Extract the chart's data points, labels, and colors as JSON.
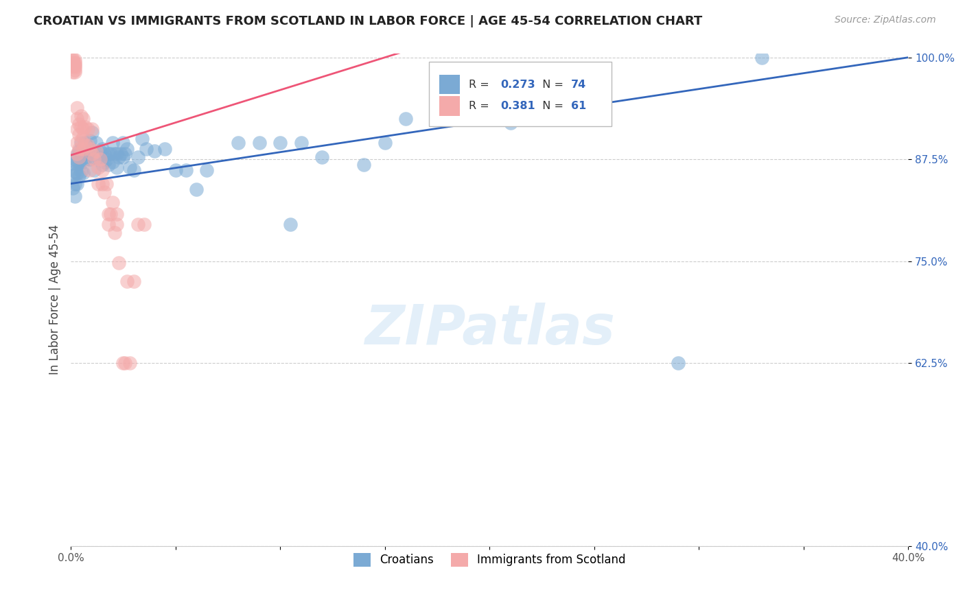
{
  "title": "CROATIAN VS IMMIGRANTS FROM SCOTLAND IN LABOR FORCE | AGE 45-54 CORRELATION CHART",
  "source": "Source: ZipAtlas.com",
  "ylabel": "In Labor Force | Age 45-54",
  "xlim": [
    0.0,
    0.4
  ],
  "ylim": [
    0.4,
    1.005
  ],
  "ytick_positions": [
    0.4,
    0.625,
    0.75,
    0.875,
    1.0
  ],
  "ytick_labels": [
    "40.0%",
    "62.5%",
    "75.0%",
    "87.5%",
    "100.0%"
  ],
  "xtick_positions": [
    0.0,
    0.05,
    0.1,
    0.15,
    0.2,
    0.25,
    0.3,
    0.35,
    0.4
  ],
  "xtick_labels": [
    "0.0%",
    "",
    "",
    "",
    "",
    "",
    "",
    "",
    "40.0%"
  ],
  "grid_color": "#cccccc",
  "watermark": "ZIPatlas",
  "R1": "0.273",
  "N1": "74",
  "R2": "0.381",
  "N2": "61",
  "blue_color": "#7BAAD4",
  "pink_color": "#F4AAAA",
  "blue_line": "#3366BB",
  "pink_line": "#EE5577",
  "label1": "Croatians",
  "label2": "Immigrants from Scotland",
  "blue_x": [
    0.001,
    0.001,
    0.001,
    0.002,
    0.002,
    0.002,
    0.002,
    0.003,
    0.003,
    0.003,
    0.003,
    0.004,
    0.004,
    0.004,
    0.005,
    0.005,
    0.005,
    0.006,
    0.006,
    0.006,
    0.007,
    0.007,
    0.008,
    0.009,
    0.009,
    0.01,
    0.01,
    0.011,
    0.011,
    0.012,
    0.013,
    0.014,
    0.015,
    0.015,
    0.016,
    0.016,
    0.017,
    0.018,
    0.018,
    0.019,
    0.02,
    0.02,
    0.021,
    0.022,
    0.022,
    0.023,
    0.024,
    0.025,
    0.025,
    0.026,
    0.027,
    0.028,
    0.03,
    0.032,
    0.034,
    0.036,
    0.04,
    0.045,
    0.05,
    0.055,
    0.06,
    0.065,
    0.08,
    0.09,
    0.1,
    0.11,
    0.15,
    0.21,
    0.29,
    0.105,
    0.12,
    0.14,
    0.33,
    0.16
  ],
  "blue_y": [
    0.87,
    0.855,
    0.84,
    0.875,
    0.86,
    0.845,
    0.83,
    0.88,
    0.87,
    0.858,
    0.845,
    0.885,
    0.87,
    0.855,
    0.895,
    0.875,
    0.86,
    0.885,
    0.872,
    0.858,
    0.895,
    0.875,
    0.882,
    0.898,
    0.875,
    0.908,
    0.885,
    0.878,
    0.862,
    0.895,
    0.878,
    0.885,
    0.888,
    0.868,
    0.882,
    0.872,
    0.875,
    0.882,
    0.868,
    0.882,
    0.895,
    0.872,
    0.882,
    0.882,
    0.865,
    0.878,
    0.882,
    0.895,
    0.878,
    0.882,
    0.888,
    0.865,
    0.862,
    0.878,
    0.9,
    0.888,
    0.885,
    0.888,
    0.862,
    0.862,
    0.838,
    0.862,
    0.895,
    0.895,
    0.895,
    0.895,
    0.895,
    0.92,
    0.625,
    0.795,
    0.878,
    0.868,
    1.0,
    0.925
  ],
  "pink_x": [
    0.001,
    0.001,
    0.001,
    0.001,
    0.001,
    0.002,
    0.002,
    0.002,
    0.002,
    0.002,
    0.002,
    0.003,
    0.003,
    0.003,
    0.003,
    0.004,
    0.004,
    0.004,
    0.005,
    0.005,
    0.005,
    0.006,
    0.006,
    0.006,
    0.006,
    0.007,
    0.007,
    0.008,
    0.008,
    0.009,
    0.009,
    0.01,
    0.01,
    0.011,
    0.012,
    0.013,
    0.013,
    0.014,
    0.015,
    0.015,
    0.016,
    0.017,
    0.018,
    0.018,
    0.019,
    0.02,
    0.021,
    0.022,
    0.022,
    0.023,
    0.025,
    0.026,
    0.027,
    0.028,
    0.03,
    0.032,
    0.035,
    0.001,
    0.002,
    0.003,
    0.004
  ],
  "pink_y": [
    0.998,
    0.996,
    0.994,
    0.992,
    0.99,
    0.997,
    0.994,
    0.992,
    0.99,
    0.988,
    0.985,
    0.938,
    0.925,
    0.912,
    0.895,
    0.918,
    0.905,
    0.888,
    0.928,
    0.915,
    0.898,
    0.925,
    0.912,
    0.902,
    0.888,
    0.915,
    0.892,
    0.912,
    0.892,
    0.888,
    0.862,
    0.912,
    0.882,
    0.875,
    0.885,
    0.865,
    0.845,
    0.875,
    0.862,
    0.845,
    0.835,
    0.845,
    0.808,
    0.795,
    0.808,
    0.822,
    0.785,
    0.808,
    0.795,
    0.748,
    0.625,
    0.625,
    0.725,
    0.625,
    0.725,
    0.795,
    0.795,
    0.982,
    0.982,
    0.882,
    0.878
  ]
}
